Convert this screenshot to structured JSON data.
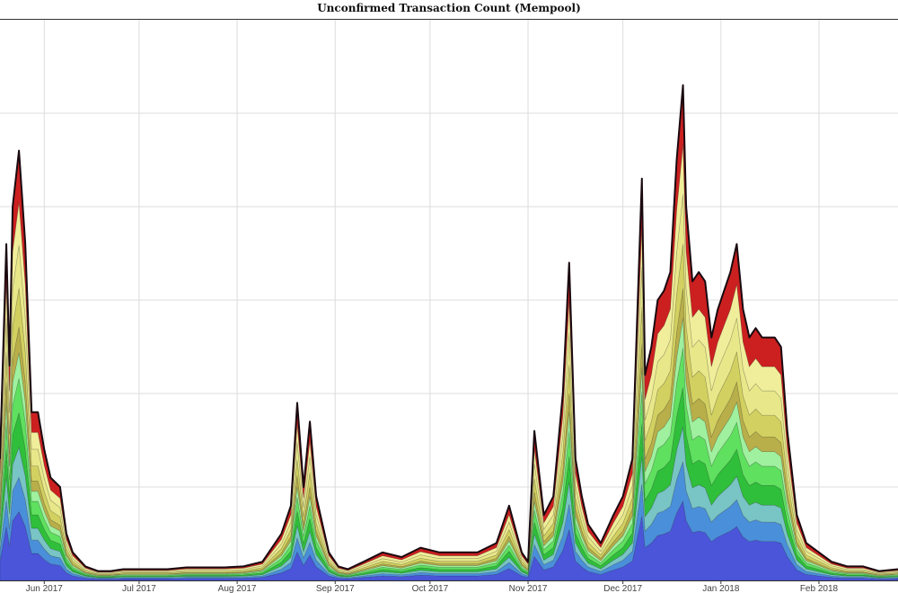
{
  "chart_data": {
    "type": "area",
    "title": "Unconfirmed Transaction Count (Mempool)",
    "xlabel": "",
    "ylabel": "",
    "stacked": true,
    "grid": true,
    "legend": "none",
    "x_ticks": [
      "Jun 2017",
      "Jul 2017",
      "Aug 2017",
      "Sep 2017",
      "Oct 2017",
      "Nov 2017",
      "Dec 2017",
      "Jan 2018",
      "Feb 2018"
    ],
    "x_range": [
      "2017-05-18",
      "2018-02-26"
    ],
    "y_range": [
      0,
      6
    ],
    "dates": [
      "2017-05-18",
      "2017-05-20",
      "2017-05-21",
      "2017-05-22",
      "2017-05-24",
      "2017-05-26",
      "2017-05-28",
      "2017-05-30",
      "2017-06-01",
      "2017-06-03",
      "2017-06-06",
      "2017-06-08",
      "2017-06-10",
      "2017-06-14",
      "2017-06-18",
      "2017-06-22",
      "2017-06-26",
      "2017-06-30",
      "2017-07-04",
      "2017-07-10",
      "2017-07-16",
      "2017-07-22",
      "2017-07-28",
      "2017-08-03",
      "2017-08-09",
      "2017-08-15",
      "2017-08-18",
      "2017-08-20",
      "2017-08-22",
      "2017-08-24",
      "2017-08-26",
      "2017-08-28",
      "2017-08-30",
      "2017-09-02",
      "2017-09-05",
      "2017-09-10",
      "2017-09-16",
      "2017-09-22",
      "2017-09-28",
      "2017-10-04",
      "2017-10-10",
      "2017-10-16",
      "2017-10-22",
      "2017-10-26",
      "2017-10-30",
      "2017-11-01",
      "2017-11-03",
      "2017-11-06",
      "2017-11-09",
      "2017-11-12",
      "2017-11-14",
      "2017-11-16",
      "2017-11-18",
      "2017-11-20",
      "2017-11-24",
      "2017-11-28",
      "2017-12-01",
      "2017-12-04",
      "2017-12-07",
      "2017-12-08",
      "2017-12-10",
      "2017-12-12",
      "2017-12-14",
      "2017-12-16",
      "2017-12-18",
      "2017-12-20",
      "2017-12-21",
      "2017-12-23",
      "2017-12-25",
      "2017-12-27",
      "2017-12-29",
      "2017-12-31",
      "2018-01-02",
      "2018-01-04",
      "2018-01-06",
      "2018-01-08",
      "2018-01-10",
      "2018-01-12",
      "2018-01-14",
      "2018-01-16",
      "2018-01-18",
      "2018-01-20",
      "2018-01-22",
      "2018-01-25",
      "2018-01-28",
      "2018-02-01",
      "2018-02-05",
      "2018-02-10",
      "2018-02-15",
      "2018-02-20",
      "2018-02-26"
    ],
    "total": [
      1.3,
      3.6,
      2.3,
      4.0,
      4.6,
      3.6,
      1.8,
      1.8,
      1.4,
      1.1,
      1.0,
      0.5,
      0.3,
      0.15,
      0.1,
      0.1,
      0.12,
      0.12,
      0.12,
      0.12,
      0.14,
      0.14,
      0.14,
      0.15,
      0.2,
      0.5,
      0.8,
      1.9,
      1.0,
      1.7,
      0.9,
      0.6,
      0.3,
      0.15,
      0.12,
      0.2,
      0.3,
      0.25,
      0.35,
      0.3,
      0.3,
      0.3,
      0.4,
      0.8,
      0.3,
      0.2,
      1.6,
      0.7,
      0.9,
      2.0,
      3.4,
      1.3,
      0.9,
      0.6,
      0.4,
      0.7,
      0.9,
      1.3,
      4.3,
      2.2,
      2.5,
      3.0,
      3.1,
      3.3,
      4.5,
      5.3,
      4.0,
      3.2,
      3.3,
      3.2,
      2.6,
      2.9,
      3.1,
      3.3,
      3.6,
      2.9,
      2.6,
      2.7,
      2.6,
      2.6,
      2.6,
      2.5,
      1.6,
      0.7,
      0.4,
      0.3,
      0.2,
      0.15,
      0.15,
      0.1,
      0.12
    ],
    "band_fractions": [
      0.16,
      0.08,
      0.07,
      0.08,
      0.08,
      0.06,
      0.06,
      0.09,
      0.1,
      0.1,
      0.12
    ],
    "band_colors": [
      "#4a55d9",
      "#4a8fd9",
      "#79c4c4",
      "#2fbf3a",
      "#5fe05f",
      "#9ff09f",
      "#b8ae4a",
      "#d2d060",
      "#e8e88a",
      "#f0ee9a",
      "#cc2020"
    ],
    "outline_color": "#1a0a10"
  }
}
